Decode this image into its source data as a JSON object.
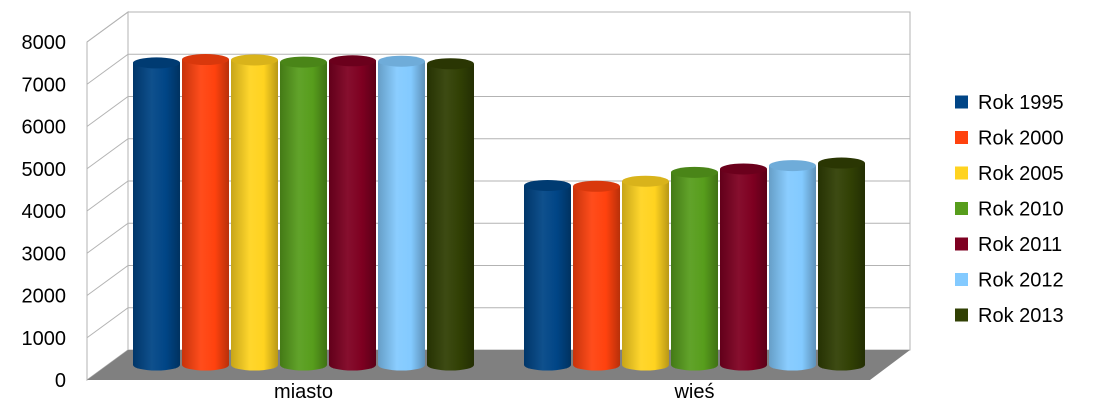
{
  "chart_data": {
    "type": "bar",
    "style": "3d-cylinder",
    "categories": [
      "miasto",
      "wieś"
    ],
    "series": [
      {
        "name": "Rok 1995",
        "color": "#004586",
        "values": [
          7150,
          4250
        ]
      },
      {
        "name": "Rok 2000",
        "color": "#ff420e",
        "values": [
          7230,
          4230
        ]
      },
      {
        "name": "Rok 2005",
        "color": "#ffd320",
        "values": [
          7220,
          4350
        ]
      },
      {
        "name": "Rok 2010",
        "color": "#579d1c",
        "values": [
          7170,
          4560
        ]
      },
      {
        "name": "Rok 2011",
        "color": "#7e0021",
        "values": [
          7200,
          4640
        ]
      },
      {
        "name": "Rok 2012",
        "color": "#83caff",
        "values": [
          7190,
          4720
        ]
      },
      {
        "name": "Rok 2013",
        "color": "#314004",
        "values": [
          7130,
          4780
        ]
      }
    ],
    "yticks": [
      "0",
      "1000",
      "2000",
      "3000",
      "4000",
      "5000",
      "6000",
      "7000",
      "8000"
    ],
    "ylim": [
      0,
      8000
    ],
    "grid": true,
    "legend_position": "right"
  }
}
